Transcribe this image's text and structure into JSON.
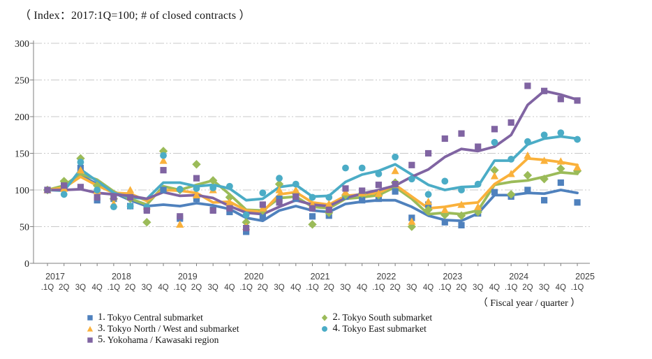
{
  "title": "（ Index：2017:1Q=100; # of closed contracts ）",
  "axis_note": "（ Fiscal year / quarter ）",
  "legend": {
    "columns": [
      [
        0,
        2,
        4
      ],
      [
        1,
        3
      ]
    ]
  },
  "chart_data": {
    "type": "line+scatter",
    "title": "（ Index：2017:1Q=100; # of closed contracts ）",
    "xlabel": "（ Fiscal year / quarter ）",
    "ylabel": "",
    "ylim": [
      0,
      300
    ],
    "yticks": [
      0,
      50,
      100,
      150,
      200,
      250,
      300
    ],
    "grid": "horizontal-dash-dot",
    "legend_position": "bottom",
    "x_years": [
      "2017",
      "2018",
      "2019",
      "2020",
      "2021",
      "2022",
      "2023",
      "2024",
      "2025"
    ],
    "x_quarters": [
      ".1Q",
      "2Q",
      "3Q",
      "4Q",
      ".1Q",
      "2Q",
      "3Q",
      "4Q",
      ".1Q",
      "2Q",
      "3Q",
      "4Q",
      ".1Q",
      "2Q",
      "3Q",
      "4Q",
      ".1Q",
      "2Q",
      "3Q",
      "4Q",
      ".1Q",
      "2Q",
      "3Q",
      "4Q",
      ".1Q",
      "2Q",
      "3Q",
      "4Q",
      ".1Q",
      "2Q",
      "3Q",
      "4Q",
      ".1Q"
    ],
    "series": [
      {
        "num": "1.",
        "name": "Tokyo Central submarket",
        "color": "#4F81BD",
        "marker": "square",
        "points": [
          100,
          108,
          130,
          86,
          88,
          78,
          74,
          100,
          61,
          88,
          73,
          70,
          43,
          63,
          88,
          88,
          64,
          65,
          91,
          86,
          88,
          98,
          62,
          80,
          56,
          52,
          68,
          97,
          91,
          100,
          86,
          110,
          83
        ],
        "trend": [
          100,
          104,
          120,
          108,
          96,
          86,
          78,
          80,
          78,
          82,
          79,
          74,
          62,
          58,
          72,
          78,
          72,
          70,
          81,
          84,
          86,
          86,
          77,
          65,
          59,
          58,
          68,
          93,
          93,
          96,
          95,
          100,
          96
        ]
      },
      {
        "num": "2.",
        "name": "Tokyo South submarket",
        "color": "#9BBB59",
        "marker": "diamond",
        "points": [
          100,
          112,
          143,
          106,
          88,
          88,
          56,
          153,
          100,
          135,
          113,
          90,
          56,
          72,
          108,
          95,
          53,
          69,
          93,
          95,
          93,
          110,
          50,
          73,
          66,
          65,
          70,
          127,
          94,
          120,
          115,
          129,
          126
        ],
        "trend": [
          100,
          106,
          122,
          114,
          98,
          88,
          80,
          105,
          100,
          107,
          113,
          94,
          73,
          72,
          89,
          91,
          77,
          75,
          88,
          90,
          93,
          104,
          88,
          67,
          69,
          67,
          72,
          107,
          111,
          113,
          118,
          124,
          122
        ]
      },
      {
        "num": "3.",
        "name": "Tokyo North / West and  submarket",
        "color": "#FAB13B",
        "marker": "triangle",
        "points": [
          100,
          102,
          127,
          99,
          81,
          100,
          78,
          140,
          53,
          93,
          100,
          83,
          50,
          75,
          100,
          100,
          80,
          81,
          97,
          96,
          95,
          126,
          57,
          84,
          73,
          80,
          77,
          119,
          122,
          147,
          140,
          139,
          131
        ],
        "trend": [
          100,
          103,
          118,
          106,
          96,
          95,
          85,
          100,
          99,
          96,
          83,
          84,
          72,
          70,
          94,
          97,
          83,
          80,
          92,
          94,
          96,
          107,
          91,
          75,
          77,
          81,
          83,
          108,
          122,
          143,
          141,
          138,
          134
        ]
      },
      {
        "num": "4.",
        "name": "Tokyo East submarket",
        "color": "#4BACC6",
        "marker": "circle",
        "points": [
          100,
          94,
          138,
          100,
          77,
          78,
          77,
          147,
          101,
          102,
          103,
          105,
          66,
          96,
          116,
          108,
          90,
          90,
          130,
          130,
          122,
          145,
          115,
          94,
          112,
          100,
          108,
          165,
          142,
          166,
          175,
          178,
          169
        ],
        "trend": [
          100,
          99,
          128,
          112,
          96,
          90,
          88,
          110,
          110,
          105,
          107,
          102,
          86,
          88,
          104,
          107,
          91,
          92,
          111,
          121,
          126,
          135,
          121,
          107,
          100,
          104,
          105,
          140,
          140,
          162,
          170,
          173,
          170
        ]
      },
      {
        "num": "5.",
        "name": "Yokohama / Kawasaki region",
        "color": "#8064A2",
        "marker": "square",
        "points": [
          100,
          106,
          104,
          90,
          90,
          90,
          72,
          127,
          64,
          116,
          72,
          75,
          48,
          80,
          83,
          91,
          75,
          73,
          102,
          99,
          107,
          108,
          134,
          150,
          170,
          177,
          159,
          183,
          192,
          242,
          235,
          224,
          222
        ],
        "trend": [
          100,
          100,
          101,
          96,
          94,
          92,
          88,
          97,
          92,
          93,
          89,
          78,
          69,
          67,
          77,
          86,
          80,
          78,
          89,
          95,
          100,
          106,
          118,
          128,
          145,
          156,
          153,
          159,
          175,
          216,
          235,
          230,
          223
        ]
      }
    ],
    "style": {
      "grid_color": "#c9c9c9",
      "axis_color": "#7f7f7f",
      "ylabel_color": "#1f1f1f",
      "xlabel_color": "#3f3f3f"
    }
  }
}
